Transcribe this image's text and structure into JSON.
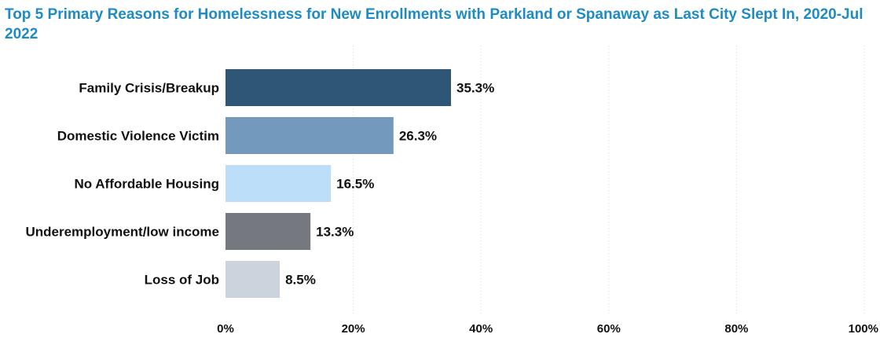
{
  "chart_data": {
    "type": "bar",
    "orientation": "horizontal",
    "title": "Top 5 Primary Reasons for Homelessness for New Enrollments with Parkland or Spanaway as Last City Slept In, 2020-Jul 2022",
    "categories": [
      "Family Crisis/Breakup",
      "Domestic Violence Victim",
      "No Affordable Housing",
      "Underemployment/low income",
      "Loss of Job"
    ],
    "values": [
      35.3,
      26.3,
      16.5,
      13.3,
      8.5
    ],
    "value_labels": [
      "35.3%",
      "26.3%",
      "16.5%",
      "13.3%",
      "8.5%"
    ],
    "bar_colors": [
      "#2e5777",
      "#7399bd",
      "#bddef9",
      "#76787f",
      "#cbd3dd"
    ],
    "xlim": [
      0,
      100
    ],
    "x_ticks": [
      0,
      20,
      40,
      60,
      80,
      100
    ],
    "x_tick_labels": [
      "0%",
      "20%",
      "40%",
      "60%",
      "80%",
      "100%"
    ],
    "grid": true,
    "title_color": "#1f8bc3"
  }
}
